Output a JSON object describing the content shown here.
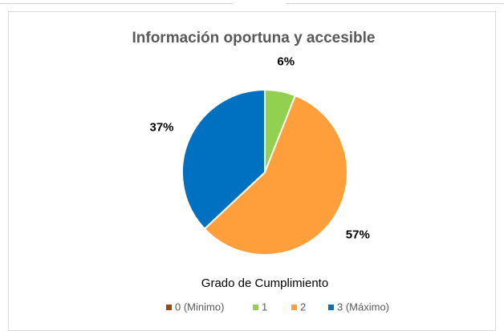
{
  "chart_data": {
    "type": "pie",
    "title": "Información oportuna y accesible",
    "legend_title": "Grado de Cumplimiento",
    "categories": [
      "0 (Minimo)",
      "1",
      "2",
      "3 (Máximo)"
    ],
    "values": [
      0,
      6,
      57,
      37
    ],
    "value_labels": [
      null,
      "6%",
      "57%",
      "37%"
    ],
    "colors": [
      "#9e480e",
      "#92d050",
      "#ff9f3b",
      "#0070c0"
    ],
    "legend": "bottom"
  }
}
